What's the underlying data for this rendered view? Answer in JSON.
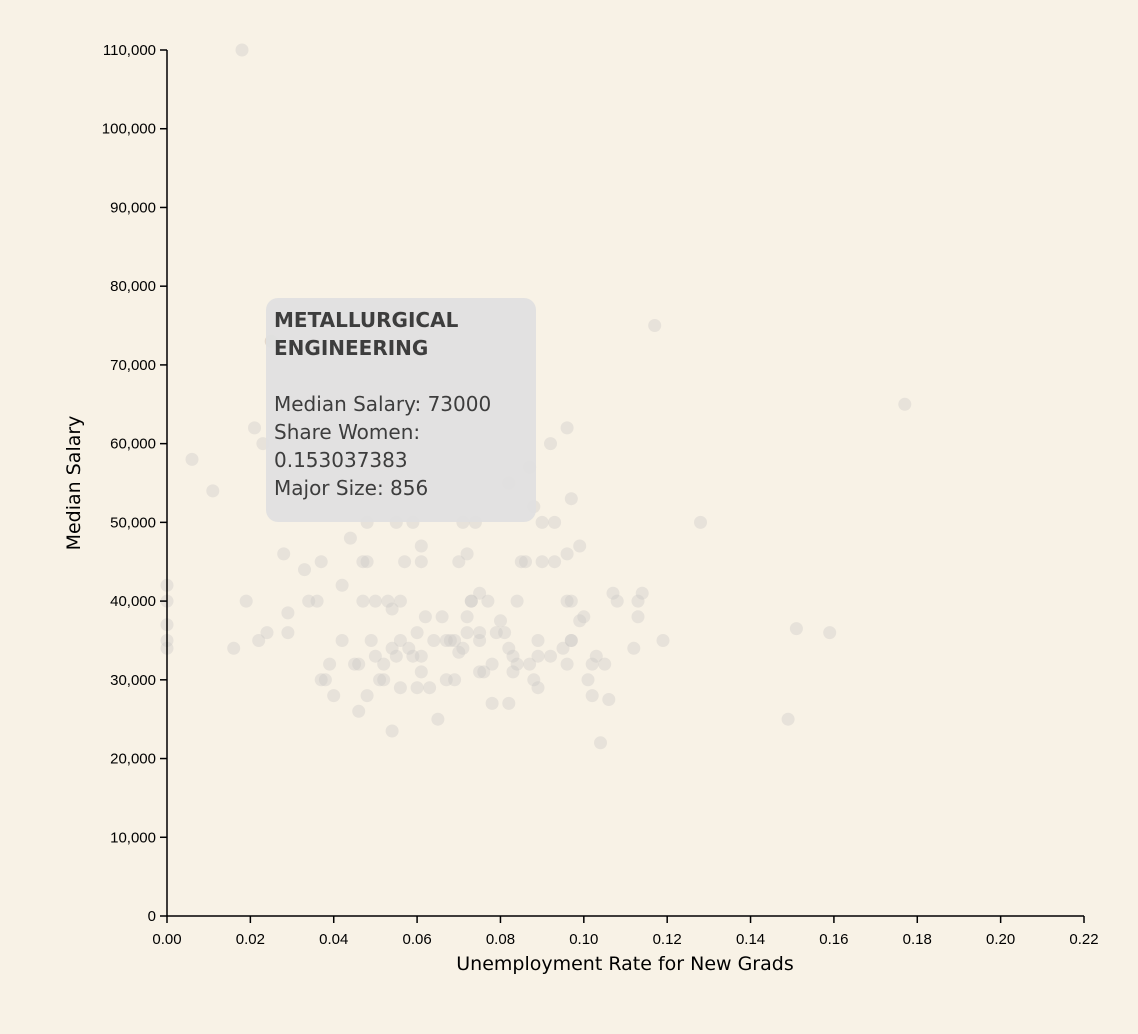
{
  "chart_data": {
    "type": "scatter",
    "xlabel": "Unemployment Rate for New Grads",
    "ylabel": "Median Salary",
    "xlim": [
      0,
      0.22
    ],
    "ylim": [
      0,
      110000
    ],
    "x_ticks": [
      "0.00",
      "0.02",
      "0.04",
      "0.06",
      "0.08",
      "0.10",
      "0.12",
      "0.14",
      "0.16",
      "0.18",
      "0.20",
      "0.22"
    ],
    "y_ticks": [
      "0",
      "10,000",
      "20,000",
      "30,000",
      "40,000",
      "50,000",
      "60,000",
      "70,000",
      "80,000",
      "90,000",
      "100,000",
      "110,000"
    ],
    "grid": false,
    "points": [
      [
        0.018,
        110000
      ],
      [
        0.117,
        75000
      ],
      [
        0.177,
        65000
      ],
      [
        0.025,
        73000
      ],
      [
        0.021,
        62000
      ],
      [
        0.023,
        60000
      ],
      [
        0.006,
        58000
      ],
      [
        0.011,
        54000
      ],
      [
        0.096,
        62000
      ],
      [
        0.092,
        60000
      ],
      [
        0.097,
        53000
      ],
      [
        0.099,
        47000
      ],
      [
        0.128,
        50000
      ],
      [
        0.09,
        50000
      ],
      [
        0.093,
        50000
      ],
      [
        0.088,
        52000
      ],
      [
        0.087,
        57000
      ],
      [
        0.082,
        55000
      ],
      [
        0.0,
        42000
      ],
      [
        0.0,
        40000
      ],
      [
        0.0,
        37000
      ],
      [
        0.0,
        35000
      ],
      [
        0.0,
        34000
      ],
      [
        0.016,
        34000
      ],
      [
        0.019,
        40000
      ],
      [
        0.022,
        35000
      ],
      [
        0.024,
        36000
      ],
      [
        0.028,
        46000
      ],
      [
        0.029,
        38500
      ],
      [
        0.029,
        36000
      ],
      [
        0.033,
        44000
      ],
      [
        0.034,
        40000
      ],
      [
        0.036,
        40000
      ],
      [
        0.037,
        30000
      ],
      [
        0.038,
        30000
      ],
      [
        0.037,
        45000
      ],
      [
        0.039,
        32000
      ],
      [
        0.04,
        28000
      ],
      [
        0.042,
        35000
      ],
      [
        0.042,
        42000
      ],
      [
        0.044,
        48000
      ],
      [
        0.045,
        32000
      ],
      [
        0.046,
        32000
      ],
      [
        0.046,
        26000
      ],
      [
        0.047,
        40000
      ],
      [
        0.047,
        45000
      ],
      [
        0.048,
        28000
      ],
      [
        0.048,
        50000
      ],
      [
        0.048,
        45000
      ],
      [
        0.049,
        35000
      ],
      [
        0.05,
        40000
      ],
      [
        0.05,
        33000
      ],
      [
        0.051,
        30000
      ],
      [
        0.052,
        30000
      ],
      [
        0.052,
        32000
      ],
      [
        0.053,
        40000
      ],
      [
        0.054,
        23500
      ],
      [
        0.054,
        39000
      ],
      [
        0.054,
        34000
      ],
      [
        0.055,
        50000
      ],
      [
        0.055,
        33000
      ],
      [
        0.056,
        40000
      ],
      [
        0.056,
        29000
      ],
      [
        0.056,
        35000
      ],
      [
        0.057,
        45000
      ],
      [
        0.058,
        34000
      ],
      [
        0.059,
        33000
      ],
      [
        0.059,
        50000
      ],
      [
        0.06,
        36000
      ],
      [
        0.06,
        29000
      ],
      [
        0.061,
        31000
      ],
      [
        0.061,
        33000
      ],
      [
        0.061,
        45000
      ],
      [
        0.061,
        47000
      ],
      [
        0.062,
        38000
      ],
      [
        0.063,
        29000
      ],
      [
        0.064,
        35000
      ],
      [
        0.065,
        25000
      ],
      [
        0.066,
        38000
      ],
      [
        0.067,
        30000
      ],
      [
        0.067,
        35000
      ],
      [
        0.068,
        35000
      ],
      [
        0.069,
        30000
      ],
      [
        0.069,
        35000
      ],
      [
        0.07,
        33500
      ],
      [
        0.07,
        45000
      ],
      [
        0.071,
        50000
      ],
      [
        0.071,
        34000
      ],
      [
        0.072,
        46000
      ],
      [
        0.072,
        36000
      ],
      [
        0.072,
        38000
      ],
      [
        0.073,
        40000
      ],
      [
        0.073,
        40000
      ],
      [
        0.074,
        50000
      ],
      [
        0.075,
        35000
      ],
      [
        0.075,
        31000
      ],
      [
        0.075,
        41000
      ],
      [
        0.075,
        36000
      ],
      [
        0.076,
        31000
      ],
      [
        0.077,
        40000
      ],
      [
        0.078,
        27000
      ],
      [
        0.078,
        32000
      ],
      [
        0.079,
        36000
      ],
      [
        0.08,
        37500
      ],
      [
        0.081,
        36000
      ],
      [
        0.082,
        27000
      ],
      [
        0.082,
        34000
      ],
      [
        0.083,
        33000
      ],
      [
        0.083,
        31000
      ],
      [
        0.084,
        32000
      ],
      [
        0.084,
        40000
      ],
      [
        0.085,
        45000
      ],
      [
        0.086,
        45000
      ],
      [
        0.087,
        32000
      ],
      [
        0.088,
        30000
      ],
      [
        0.089,
        29000
      ],
      [
        0.089,
        35000
      ],
      [
        0.089,
        33000
      ],
      [
        0.09,
        45000
      ],
      [
        0.092,
        33000
      ],
      [
        0.093,
        45000
      ],
      [
        0.095,
        34000
      ],
      [
        0.096,
        32000
      ],
      [
        0.096,
        40000
      ],
      [
        0.096,
        46000
      ],
      [
        0.097,
        35000
      ],
      [
        0.097,
        35000
      ],
      [
        0.097,
        40000
      ],
      [
        0.099,
        37500
      ],
      [
        0.1,
        38000
      ],
      [
        0.101,
        30000
      ],
      [
        0.102,
        28000
      ],
      [
        0.102,
        32000
      ],
      [
        0.103,
        33000
      ],
      [
        0.104,
        22000
      ],
      [
        0.105,
        32000
      ],
      [
        0.106,
        27500
      ],
      [
        0.107,
        41000
      ],
      [
        0.108,
        40000
      ],
      [
        0.112,
        34000
      ],
      [
        0.113,
        40000
      ],
      [
        0.113,
        38000
      ],
      [
        0.114,
        41000
      ],
      [
        0.119,
        35000
      ],
      [
        0.149,
        25000
      ],
      [
        0.151,
        36500
      ],
      [
        0.159,
        36000
      ]
    ]
  },
  "tooltip": {
    "title": "METALLURGICAL ENGINEERING",
    "salary": "Median Salary: 73000",
    "share_women": "Share Women: 0.153037383",
    "major_size": "Major Size: 856"
  }
}
